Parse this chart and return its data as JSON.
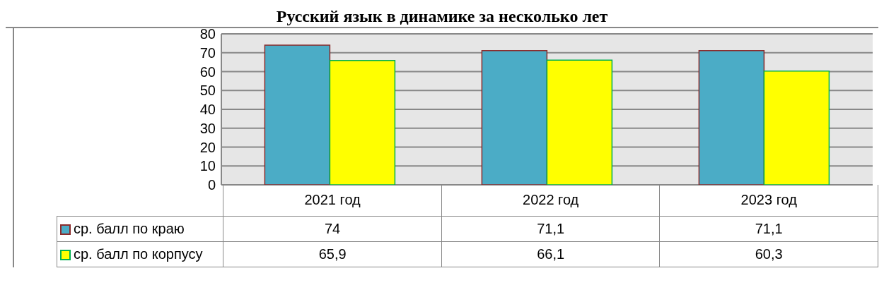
{
  "chart_data": {
    "type": "bar",
    "title": "Русский язык в динамике за несколько лет",
    "categories": [
      "2021 год",
      "2022 год",
      "2023 год"
    ],
    "series": [
      {
        "name": "ср. балл по краю",
        "color": "#4bacc6",
        "values": [
          74,
          71.1,
          71.1
        ],
        "value_labels": [
          "74",
          "71,1",
          "71,1"
        ]
      },
      {
        "name": "ср. балл по корпусу",
        "color": "#ffff00",
        "values": [
          65.9,
          66.1,
          60.3
        ],
        "value_labels": [
          "65,9",
          "66,1",
          "60,3"
        ]
      }
    ],
    "ylim": [
      0,
      80
    ],
    "yticks": [
      0,
      10,
      20,
      30,
      40,
      50,
      60,
      70,
      80
    ],
    "grid": "y",
    "legend": "bottom"
  }
}
